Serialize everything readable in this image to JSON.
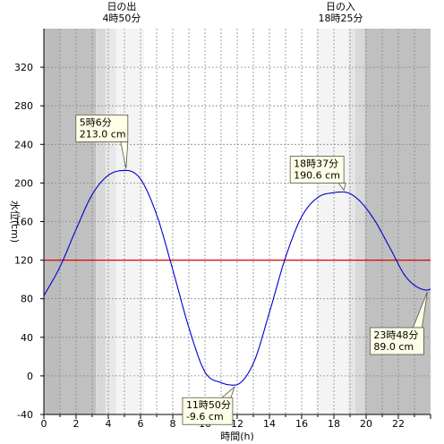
{
  "chart_data": {
    "type": "line",
    "xlabel": "時間(h)",
    "ylabel": "水位(cm)",
    "xlim": [
      0,
      24
    ],
    "ylim": [
      -40,
      360
    ],
    "xticks": [
      "0",
      "2",
      "4",
      "6",
      "8",
      "10",
      "12",
      "14",
      "16",
      "18",
      "20",
      "22"
    ],
    "yticks": [
      "-40",
      "0",
      "40",
      "80",
      "120",
      "160",
      "200",
      "240",
      "280",
      "320"
    ],
    "grid": true,
    "sunrise": {
      "label": "日の出",
      "time": "4時50分",
      "hour": 4.83
    },
    "sunset": {
      "label": "日の入",
      "time": "18時25分",
      "hour": 18.42
    },
    "reference_line": {
      "value": 120,
      "color": "#e00000"
    },
    "series": [
      {
        "color": "#0000cc",
        "x": [
          0,
          1,
          2,
          3,
          4,
          5.1,
          6,
          7,
          8,
          9,
          10,
          11,
          11.83,
          13,
          14,
          15,
          16,
          17,
          18,
          18.62,
          19.5,
          20.5,
          21.5,
          22.5,
          23.8,
          24
        ],
        "y": [
          83,
          113,
          152,
          188,
          208,
          213,
          204,
          167,
          110,
          50,
          4,
          -7,
          -9.6,
          13,
          66,
          123,
          165,
          185,
          190,
          190.6,
          183,
          162,
          132,
          102,
          89,
          90
        ]
      }
    ],
    "annotations": [
      {
        "time": "5時6分",
        "value": "213.0 cm",
        "x": 5.1,
        "y": 213
      },
      {
        "time": "11時50分",
        "value": "-9.6 cm",
        "x": 11.83,
        "y": -9.6
      },
      {
        "time": "18時37分",
        "value": "190.6 cm",
        "x": 18.62,
        "y": 190.6
      },
      {
        "time": "23時48分",
        "value": "89.0 cm",
        "x": 23.8,
        "y": 89
      }
    ]
  }
}
